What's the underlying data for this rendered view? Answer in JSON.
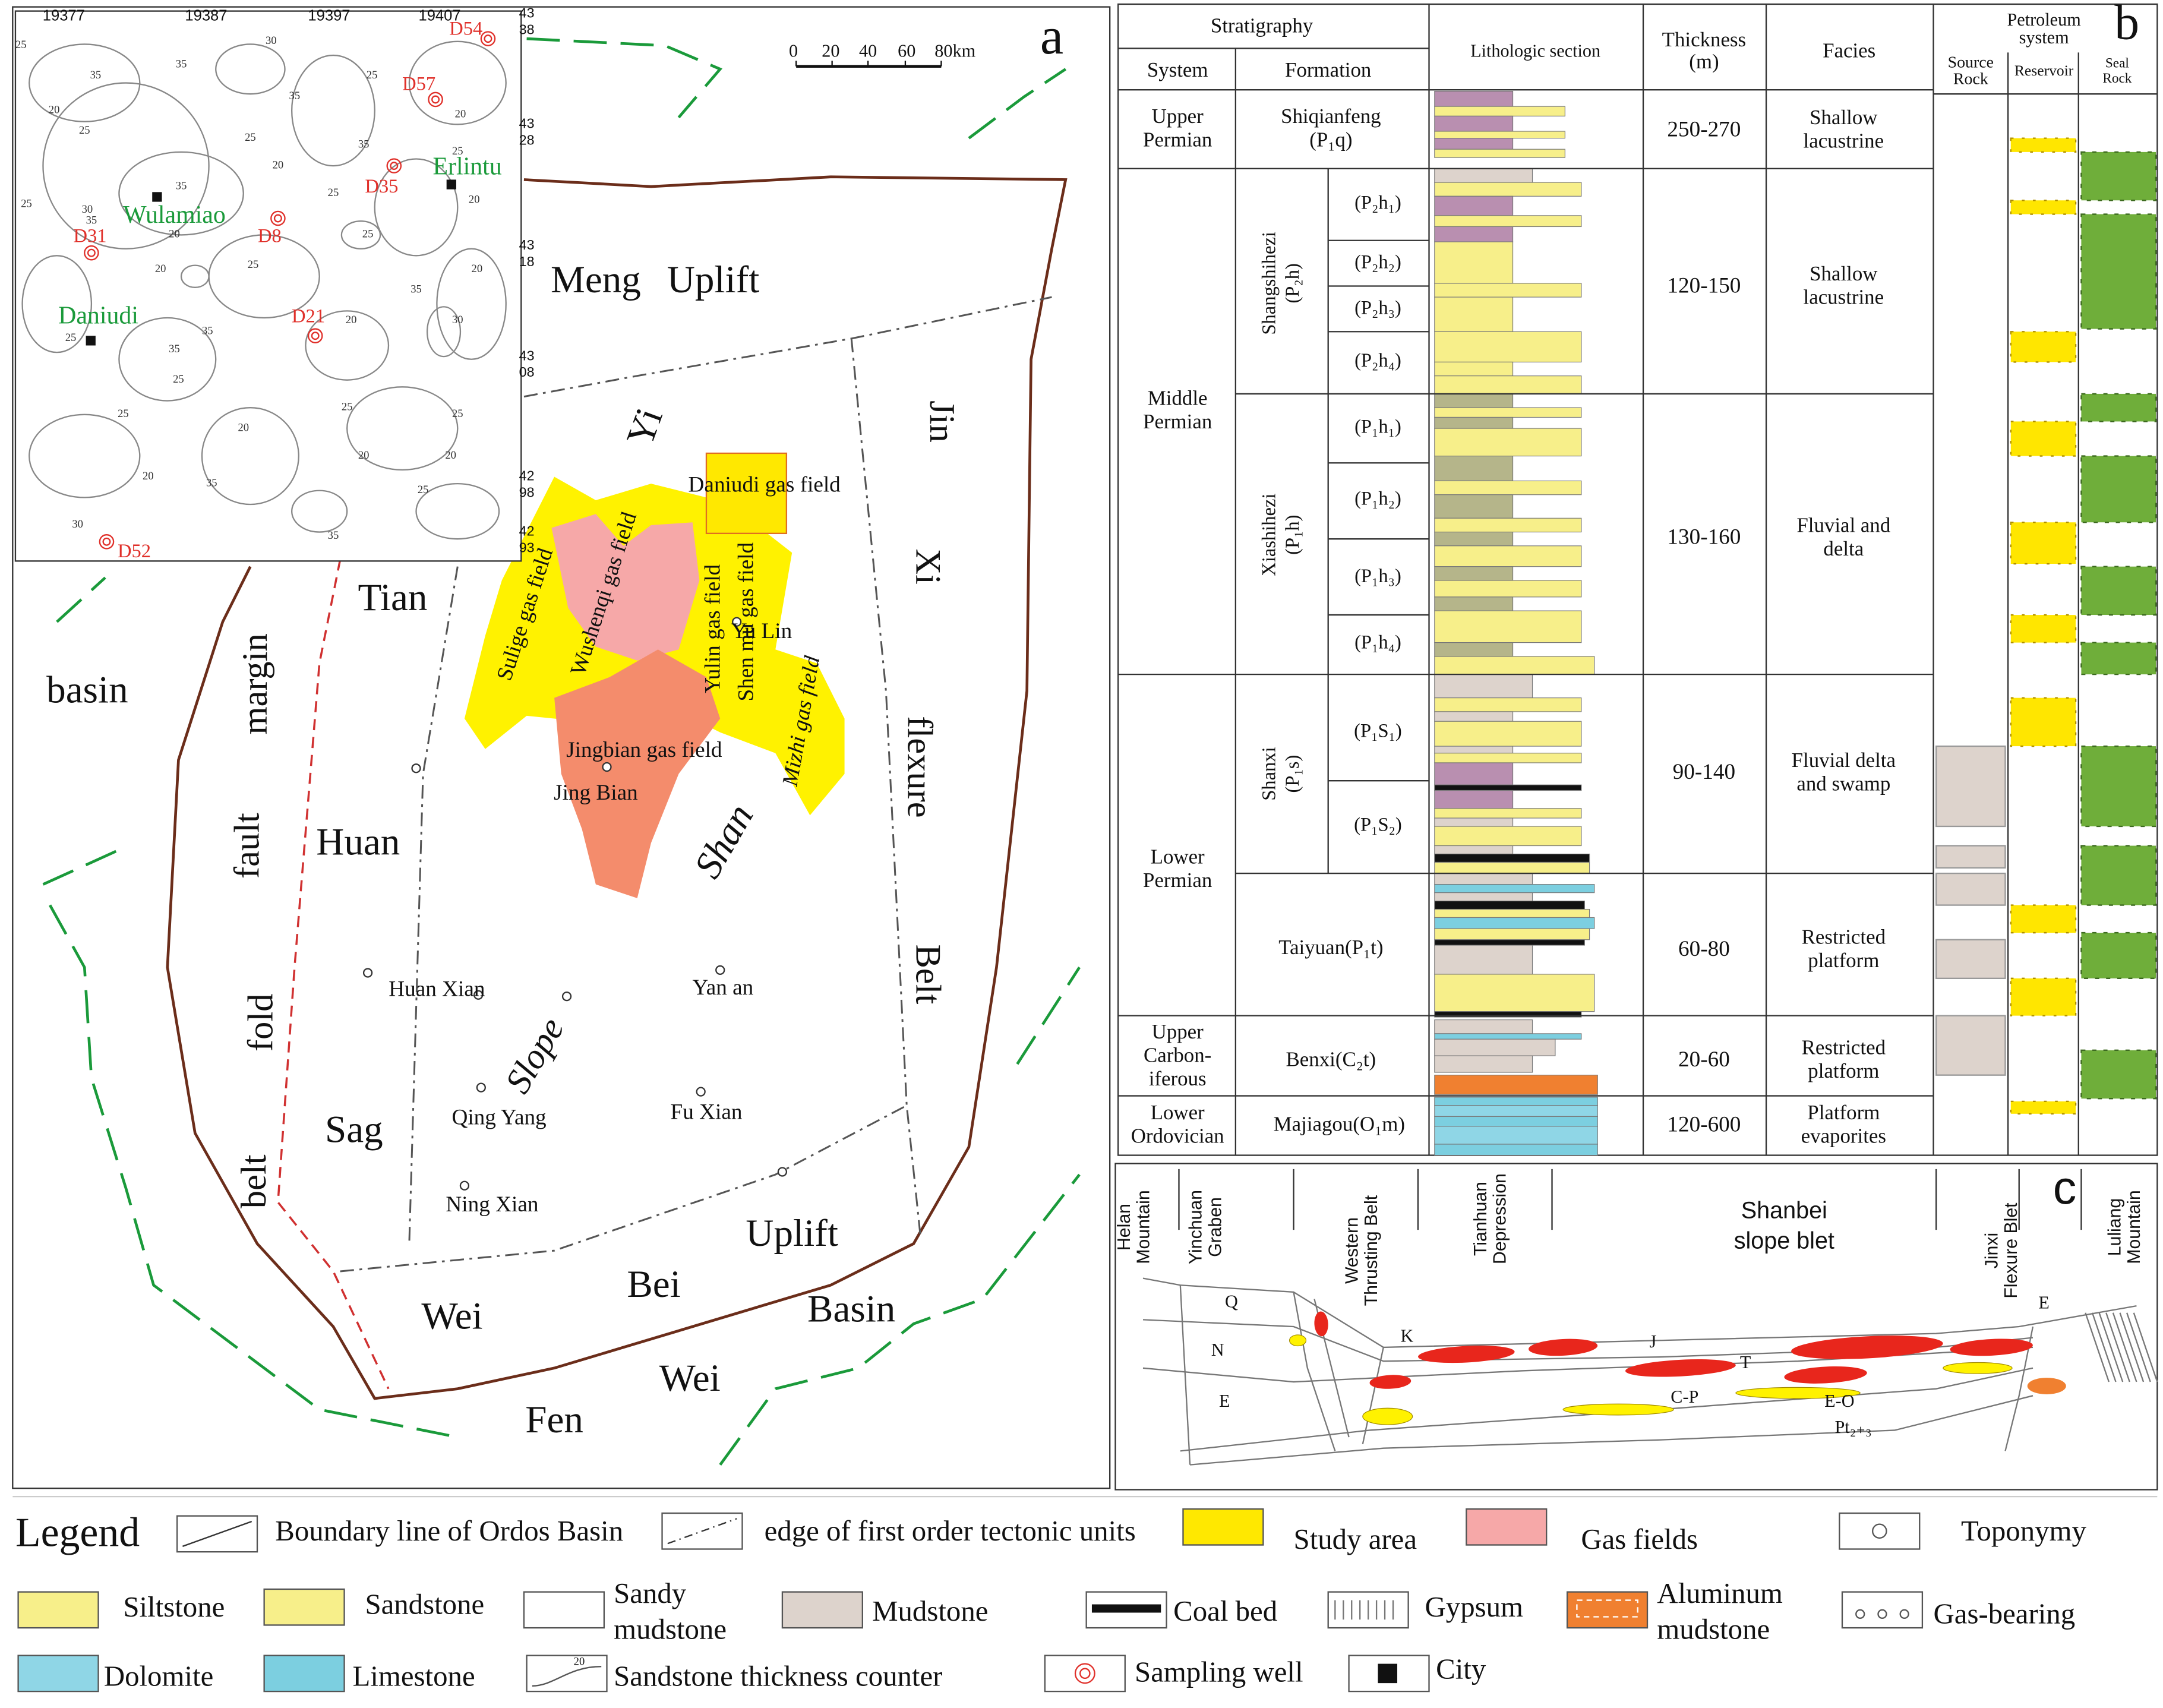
{
  "panel_a": {
    "label": "a",
    "scale_bar": [
      "0",
      "20",
      "40",
      "60",
      "80km"
    ],
    "inset": {
      "x_ticks": [
        "19377",
        "19387",
        "19397",
        "19407"
      ],
      "y_ticks": [
        [
          "43",
          "38"
        ],
        [
          "43",
          "28"
        ],
        [
          "43",
          "18"
        ],
        [
          "43",
          "08"
        ],
        [
          "42",
          "98"
        ],
        [
          "42",
          "93"
        ]
      ],
      "cities": [
        "Wulamiao",
        "Erlintu",
        "Daniudi"
      ],
      "wells": [
        "D54",
        "D57",
        "D35",
        "D31",
        "D8",
        "D21",
        "D52"
      ],
      "contour_labels": [
        "25",
        "35",
        "20",
        "25",
        "35",
        "30",
        "35",
        "20",
        "25",
        "35",
        "20",
        "25",
        "25",
        "20",
        "35",
        "25",
        "20",
        "25",
        "30",
        "35",
        "20",
        "25",
        "35",
        "25",
        "20",
        "35",
        "20",
        "30",
        "25",
        "35",
        "25",
        "25",
        "20",
        "35",
        "20",
        "25",
        "20",
        "25",
        "35",
        "30",
        "25",
        "20"
      ]
    },
    "regions": [
      "Meng",
      "Uplift",
      "Yi",
      "Shan",
      "Tian",
      "Huan",
      "Sag",
      "basin",
      "margin",
      "fault",
      "fold",
      "belt",
      "Jin",
      "Xi",
      "flexure",
      "Belt",
      "Slope",
      "Uplift",
      "Wei",
      "Bei",
      "Basin",
      "Wei",
      "Fen"
    ],
    "gas_fields": [
      "Daniudi gas field",
      "Sulige gas field",
      "Wushenqi gas field",
      "Yulin gas field",
      "Shen mu gas field",
      "Mizhi gas field",
      "Jingbian gas field"
    ],
    "towns": [
      "Yu Lin",
      "Jing Bian",
      "Huan Xian",
      "Yan an",
      "Qing Yang",
      "Fu Xian",
      "Ning Xian"
    ]
  },
  "panel_b": {
    "label": "b",
    "headers": {
      "stratigraphy": "Stratigraphy",
      "system": "System",
      "formation": "Formation",
      "lithology": "Lithologic section",
      "thickness": [
        "Thickness",
        "(m)"
      ],
      "facies": "Facies",
      "petroleum": [
        "Petroleum",
        "system"
      ],
      "source": [
        "Source",
        "Rock"
      ],
      "reservoir": "Reservoir",
      "seal": [
        "Seal",
        "Rock"
      ]
    },
    "systems": [
      [
        "Upper",
        "Permian"
      ],
      [
        "Middle",
        "Permian"
      ],
      [
        "Lower",
        "Permian"
      ],
      [
        "Upper",
        "Carbon-",
        "iferous"
      ],
      [
        "Lower",
        "Ordovician"
      ]
    ],
    "formations": [
      {
        "lines": [
          "Shiqianfeng",
          "(P₁q)"
        ]
      },
      {
        "lines": [
          "Shangshihezi",
          "(P₂h)"
        ],
        "members": [
          "(P₂h₁)",
          "(P₂h₂)",
          "(P₂h₃)",
          "(P₂h₄)"
        ]
      },
      {
        "lines": [
          "Xiashihezi",
          "(P₁h)"
        ],
        "members": [
          "(P₁h₁)",
          "(P₁h₂)",
          "(P₁h₃)",
          "(P₁h₄)"
        ]
      },
      {
        "lines": [
          "Shanxi",
          "(P₁s)"
        ],
        "members": [
          "(P₁S₁)",
          "(P₁S₂)"
        ]
      },
      {
        "lines": [
          "Taiyuan(P₁t)"
        ]
      },
      {
        "lines": [
          "Benxi(C₂t)"
        ]
      },
      {
        "lines": [
          "Majiagou(O₁m)"
        ]
      }
    ],
    "thickness": [
      "250-270",
      "120-150",
      "130-160",
      "90-140",
      "60-80",
      "20-60",
      "120-600"
    ],
    "facies": [
      [
        "Shallow",
        "lacustrine"
      ],
      [
        "Shallow",
        "lacustrine"
      ],
      [
        "Fluvial and",
        "delta"
      ],
      [
        "Fluvial delta",
        "and swamp"
      ],
      [
        "Restricted",
        "platform"
      ],
      [
        "Restricted",
        "platform"
      ],
      [
        "Platform",
        "evaporites"
      ]
    ]
  },
  "panel_c": {
    "label": "c",
    "zones": [
      [
        "Helan",
        "Mountain"
      ],
      [
        "Yinchuan",
        "Graben"
      ],
      [
        "Western",
        "Thrusting Belt"
      ],
      [
        "Tianhuan",
        "Depression"
      ],
      [
        "Shanbei",
        "slope blet"
      ],
      [
        "Jinxi",
        "Flexure Blet"
      ],
      [
        "Luliang",
        "Mountain"
      ]
    ],
    "layers": [
      "Q",
      "N",
      "E",
      "K",
      "J",
      "T",
      "C-P",
      "E-O",
      "Pt₂₊₃",
      "E"
    ]
  },
  "legend": {
    "title": "Legend",
    "contour_label": "20",
    "items": [
      [
        "Boundary line of Ordos Basin"
      ],
      [
        "edge of first order tectonic units"
      ],
      [
        "Study area"
      ],
      [
        "Gas fields"
      ],
      [
        "Toponymy"
      ],
      [
        "Siltstone"
      ],
      [
        "Sandstone"
      ],
      [
        "Sandy",
        "mudstone"
      ],
      [
        "Mudstone"
      ],
      [
        "Coal bed"
      ],
      [
        "Gypsum"
      ],
      [
        "Aluminum",
        "mudstone"
      ],
      [
        "Gas-bearing"
      ],
      [
        "Dolomite"
      ],
      [
        "Limestone"
      ],
      [
        "Sandstone thickness counter"
      ],
      [
        "Sampling well"
      ],
      [
        "City"
      ]
    ]
  }
}
